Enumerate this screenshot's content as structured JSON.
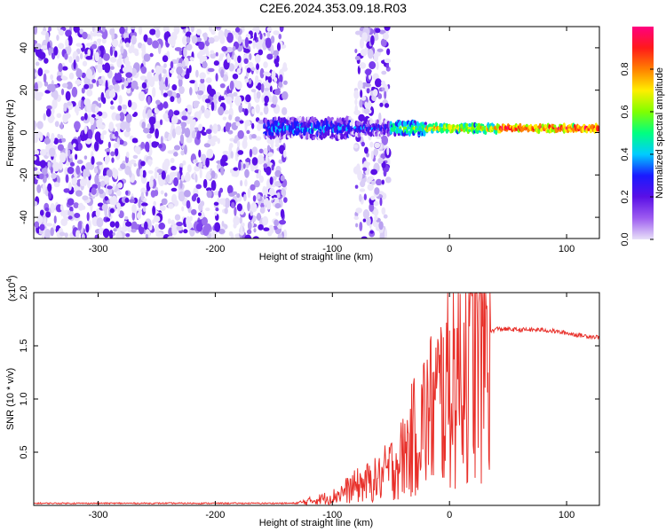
{
  "title": "C2E6.2024.353.09.18.R03",
  "colors": {
    "snr_line": "#e8302a",
    "axis": "#000000",
    "colormap": [
      "#e8e0f8",
      "#9d5cf0",
      "#5a10e6",
      "#1a1aff",
      "#00ccff",
      "#00ff80",
      "#80ff00",
      "#ffee00",
      "#ff8000",
      "#ff1a1a",
      "#ff0080"
    ]
  },
  "chart_data": [
    {
      "type": "heatmap",
      "title": "",
      "xlabel": "Height of straight line (km)",
      "ylabel": "Frequency (Hz)",
      "xlim": [
        -355,
        128
      ],
      "ylim": [
        -50,
        50
      ],
      "x_ticks": [
        "-300",
        "-200",
        "-100",
        "0",
        "100"
      ],
      "y_ticks": [
        "-40",
        "-20",
        "0",
        "20",
        "40"
      ],
      "grid": false,
      "features": {
        "noise_regions_km": [
          [
            -355,
            -140
          ],
          [
            -80,
            -52
          ]
        ],
        "carrier_frequency_hz": 2,
        "carrier_start_km": -158
      },
      "colorbar": {
        "label": "Normalized spectral amplitude",
        "range": [
          0,
          1
        ],
        "ticks": [
          "0.0",
          "0.2",
          "0.4",
          "0.6",
          "0.8"
        ]
      }
    },
    {
      "type": "line",
      "title": "",
      "xlabel": "Height of straight line (km)",
      "ylabel": "SNR (10 * v/v)",
      "y_multiplier": "(x10",
      "y_multiplier_exp": "4",
      "xlim": [
        -355,
        128
      ],
      "ylim": [
        0,
        2.0
      ],
      "x_ticks": [
        "-300",
        "-200",
        "-100",
        "0",
        "100"
      ],
      "y_ticks": [
        "0.5",
        "1.0",
        "1.5",
        "2.0"
      ],
      "grid": false,
      "series": [
        {
          "x": [
            -355,
            -300,
            -200,
            -130,
            -100,
            -80,
            -60,
            -40,
            -25,
            -15,
            -5,
            5,
            10,
            20,
            30,
            40,
            60,
            80,
            100,
            110,
            128
          ],
          "y": [
            0.02,
            0.02,
            0.02,
            0.02,
            0.08,
            0.18,
            0.25,
            0.45,
            0.75,
            0.9,
            1.05,
            1.25,
            1.35,
            1.48,
            1.6,
            1.66,
            1.65,
            1.65,
            1.62,
            1.6,
            1.58
          ]
        }
      ]
    }
  ]
}
